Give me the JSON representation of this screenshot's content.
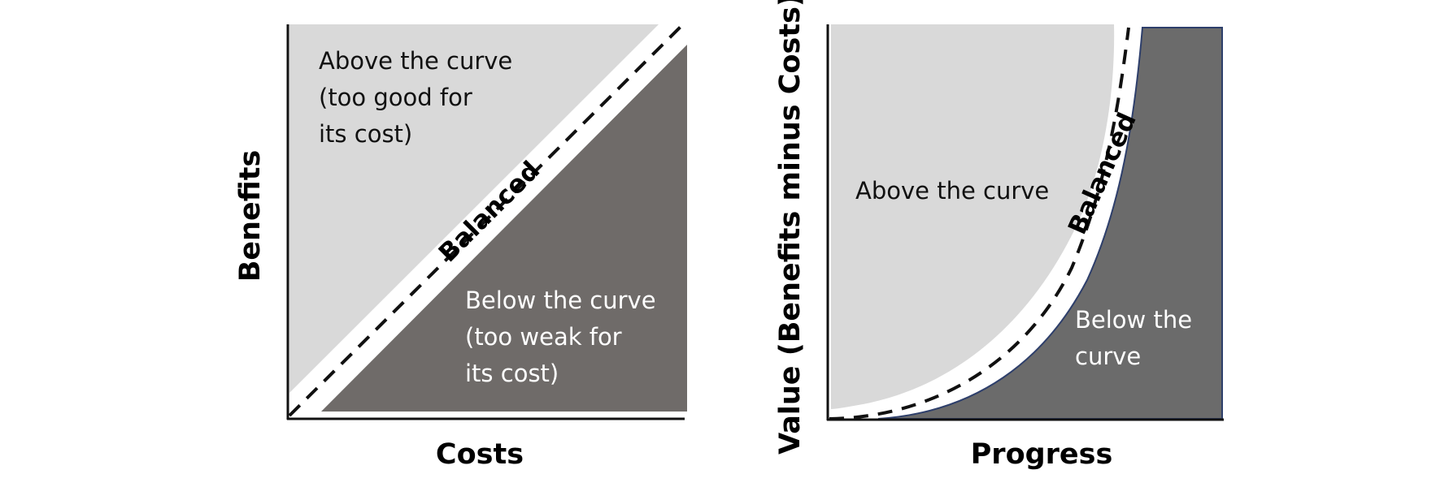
{
  "left_diagram": {
    "x_axis_title": "Costs",
    "y_axis_title": "Benefits",
    "above_region": [
      "Above the curve",
      "(too good for",
      "its cost)"
    ],
    "below_region": [
      "Below the curve",
      "(too weak for",
      "its cost)"
    ],
    "curve_label": "Balanced"
  },
  "right_diagram": {
    "x_axis_title": "Progress",
    "y_axis_title": "Value (Benefits minus Costs)",
    "above_region": [
      "Above the curve"
    ],
    "below_region": [
      "Below the",
      "curve"
    ],
    "curve_label": "Balanced"
  },
  "colors": {
    "above_fill": "#d9d9d9",
    "below_fill_left": "#6f6b69",
    "below_fill_right": "#6b6b6b",
    "axis": "#111111",
    "right_curve_border": "#2e3f6b"
  }
}
